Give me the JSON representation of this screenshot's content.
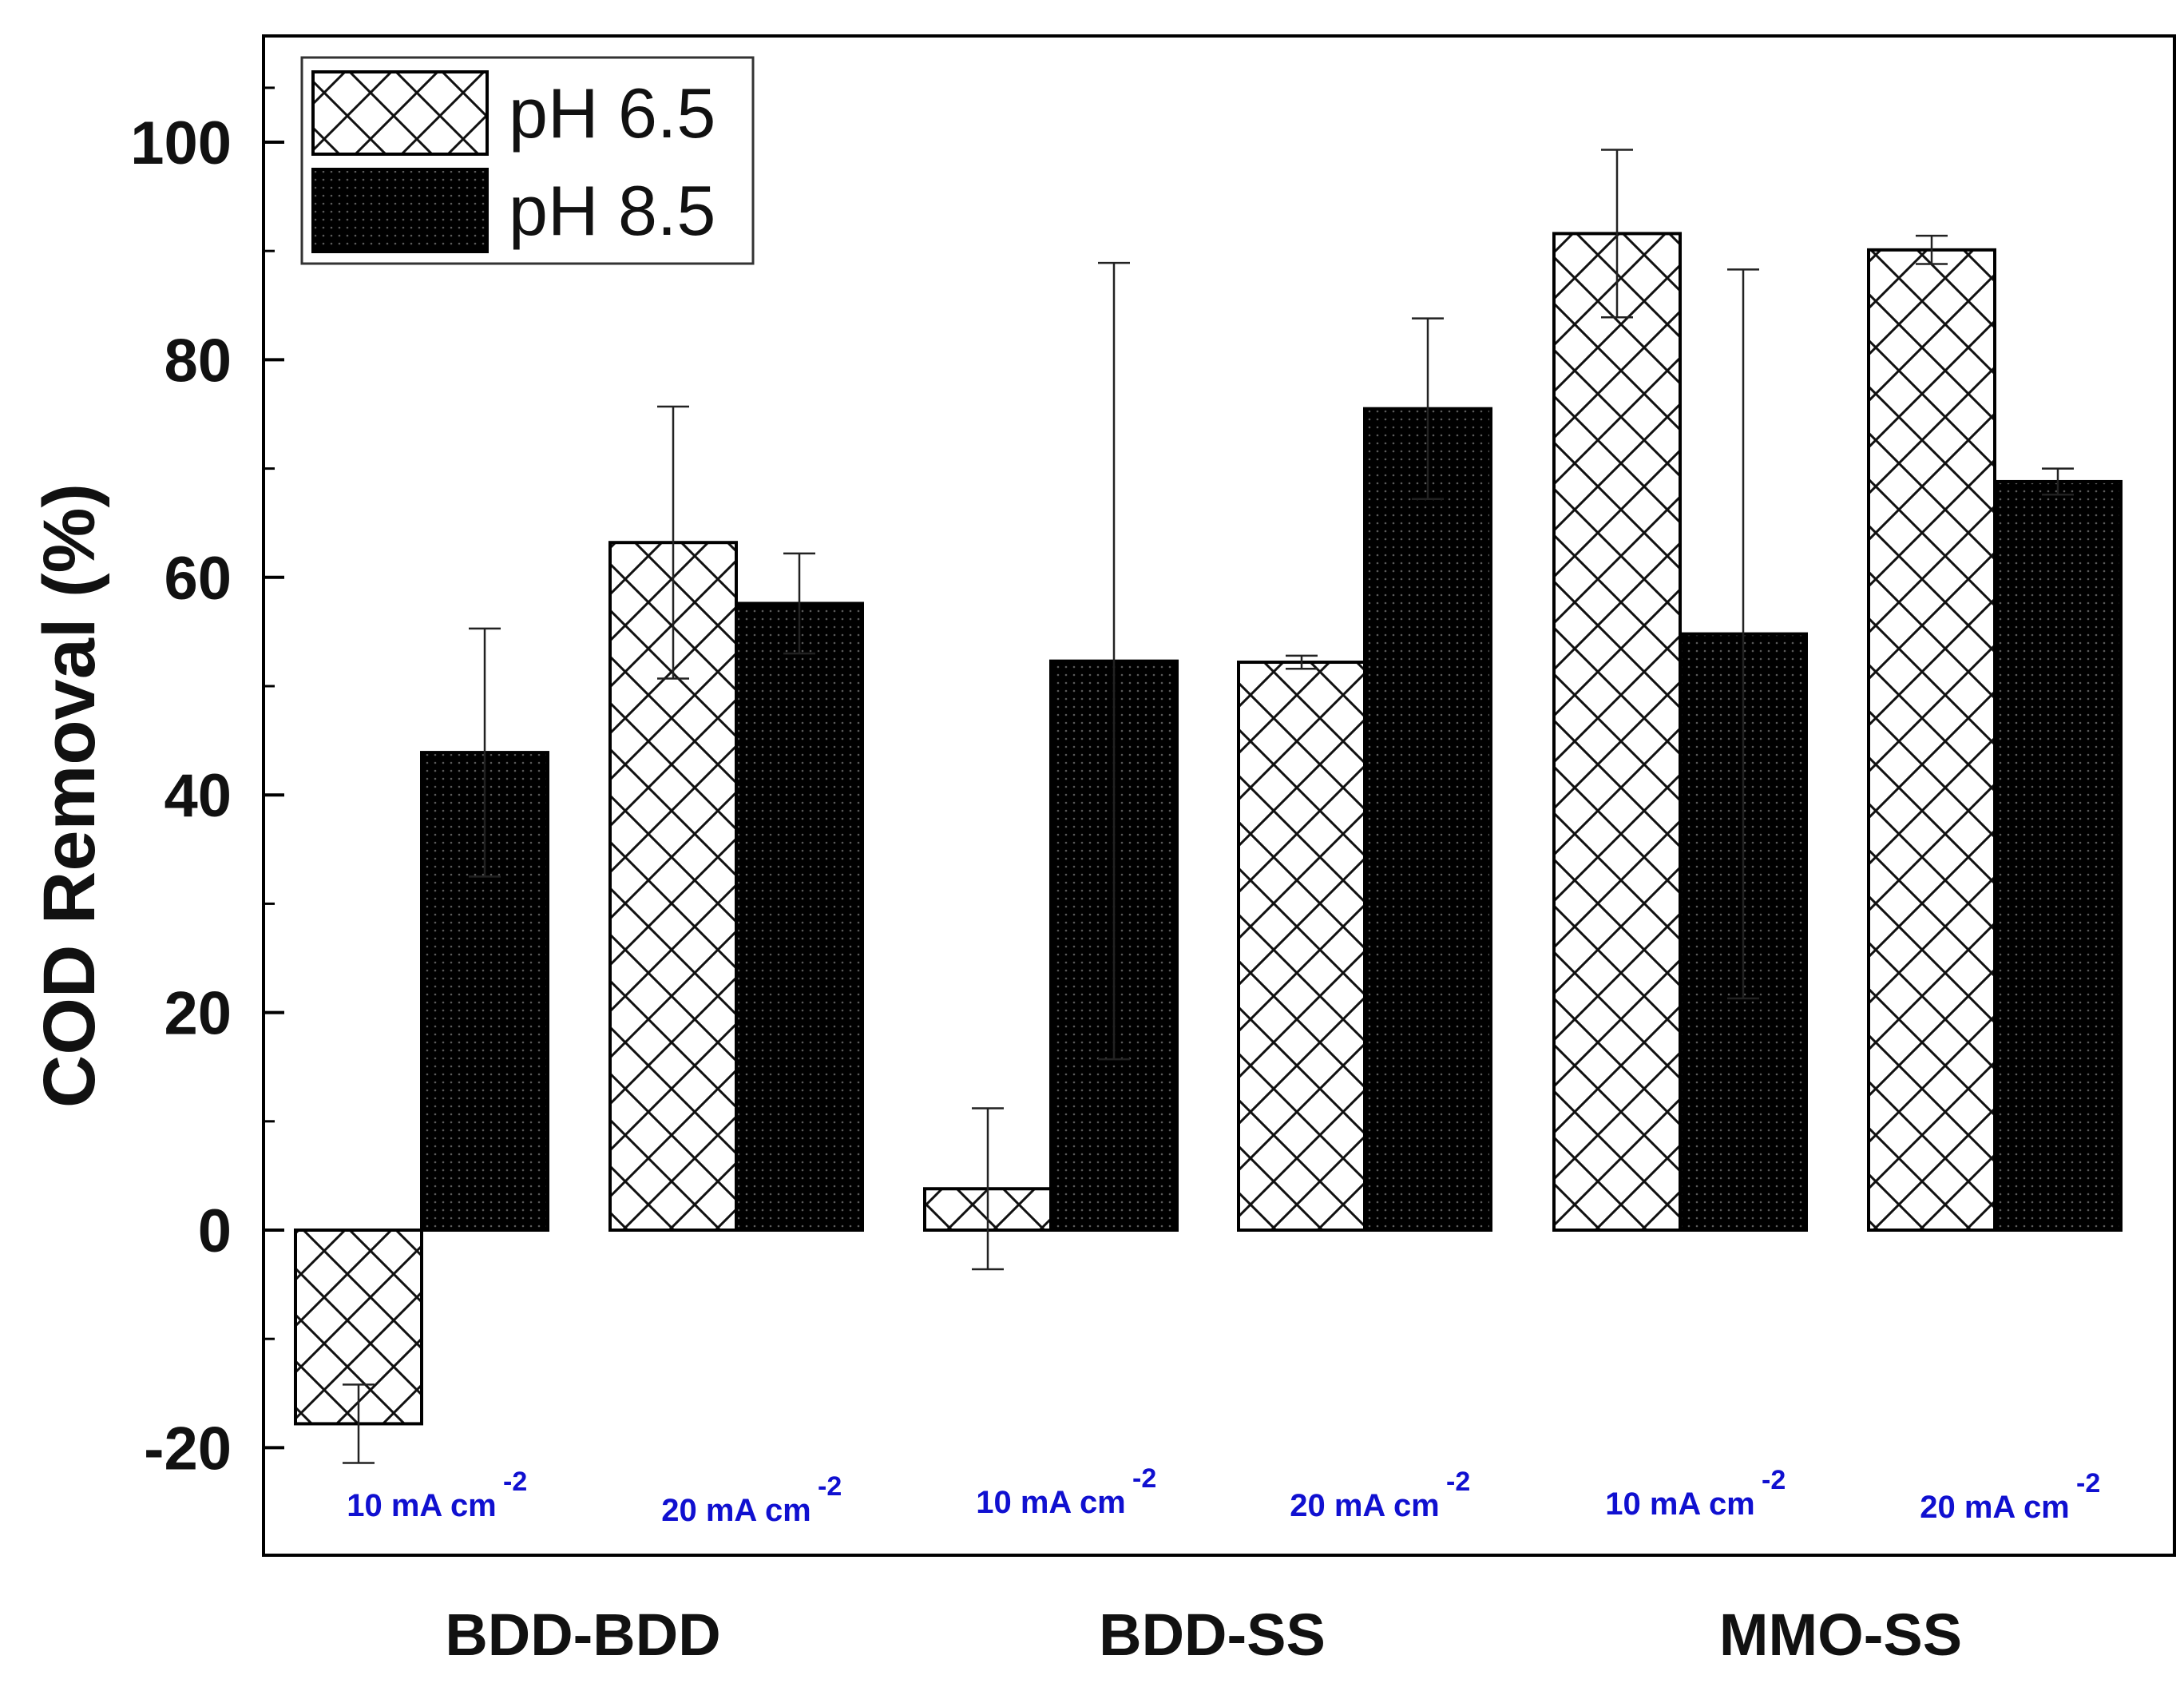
{
  "chart_data": {
    "type": "bar",
    "ylabel": "COD Removal (%)",
    "ylim": [
      -25,
      110
    ],
    "yticks": [
      -20,
      0,
      20,
      40,
      60,
      80,
      100
    ],
    "legend": {
      "position": "top-left",
      "entries": [
        {
          "label": "pH 6.5",
          "pattern": "crosshatch"
        },
        {
          "label": "pH 8.5",
          "pattern": "solid-black-dotted"
        }
      ]
    },
    "groups": [
      "BDD-BDD",
      "BDD-SS",
      "MMO-SS"
    ],
    "categories": [
      {
        "group": "BDD-BDD",
        "current": "10 mA cm",
        "exponent": "-2"
      },
      {
        "group": "BDD-BDD",
        "current": "20 mA cm",
        "exponent": "-2"
      },
      {
        "group": "BDD-SS",
        "current": "10 mA cm",
        "exponent": "-2"
      },
      {
        "group": "BDD-SS",
        "current": "20 mA cm",
        "exponent": "-2"
      },
      {
        "group": "MMO-SS",
        "current": "10 mA cm",
        "exponent": "-2"
      },
      {
        "group": "MMO-SS",
        "current": "20 mA cm",
        "exponent": "-2"
      }
    ],
    "series": [
      {
        "name": "pH 6.5",
        "values": [
          -17.8,
          63.2,
          3.8,
          52.2,
          91.6,
          90.1
        ],
        "error": [
          3.6,
          12.5,
          7.4,
          0.6,
          7.7,
          1.3
        ]
      },
      {
        "name": "pH 8.5",
        "values": [
          43.9,
          57.6,
          52.3,
          75.5,
          54.8,
          68.8
        ],
        "error": [
          11.4,
          4.6,
          36.6,
          8.3,
          33.5,
          1.2
        ]
      }
    ],
    "colors": {
      "ph65": "#ffffff",
      "ph85": "#000000",
      "axis": "#000000",
      "current_label": "#1010d0"
    }
  }
}
